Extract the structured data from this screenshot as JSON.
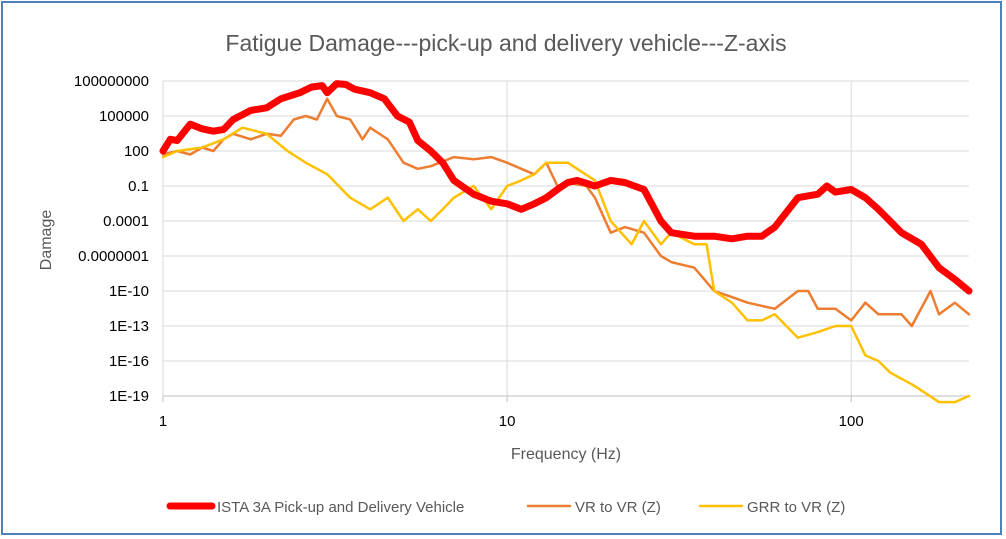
{
  "chart_data": {
    "type": "line",
    "title": "Fatigue Damage---pick-up and delivery vehicle---Z-axis",
    "xlabel": "Frequency (Hz)",
    "ylabel": "Damage",
    "x_scale": "log",
    "y_scale": "log",
    "xlim": [
      1,
      220
    ],
    "ylim": [
      1e-19,
      100000000.0
    ],
    "x_ticks": [
      {
        "value": 1,
        "label": "1"
      },
      {
        "value": 10,
        "label": "10"
      },
      {
        "value": 100,
        "label": "100"
      }
    ],
    "y_ticks": [
      {
        "value": 100000000.0,
        "label": "100000000"
      },
      {
        "value": 100000.0,
        "label": "100000"
      },
      {
        "value": 100,
        "label": "100"
      },
      {
        "value": 0.1,
        "label": "0.1"
      },
      {
        "value": 0.0001,
        "label": "0.0001"
      },
      {
        "value": 1e-07,
        "label": "0.0000001"
      },
      {
        "value": 1e-10,
        "label": "1E-10"
      },
      {
        "value": 1e-13,
        "label": "1E-13"
      },
      {
        "value": 1e-16,
        "label": "1E-16"
      },
      {
        "value": 1e-19,
        "label": "1E-19"
      }
    ],
    "grid": true,
    "legend_position": "bottom",
    "series": [
      {
        "name": "ISTA 3A Pick-up and Delivery Vehicle",
        "color": "#ff0000",
        "x": [
          1,
          1.05,
          1.1,
          1.2,
          1.3,
          1.4,
          1.5,
          1.6,
          1.8,
          2.0,
          2.2,
          2.5,
          2.7,
          2.9,
          3.0,
          3.2,
          3.4,
          3.6,
          4.0,
          4.4,
          4.8,
          5.2,
          5.5,
          6.0,
          6.5,
          7.0,
          8.0,
          9.0,
          10,
          11,
          12,
          13,
          14,
          15,
          16,
          18,
          20,
          22,
          25,
          28,
          30,
          35,
          40,
          45,
          50,
          55,
          60,
          70,
          80,
          85,
          90,
          100,
          110,
          120,
          140,
          160,
          180,
          200,
          220
        ],
        "values": [
          100,
          1000,
          800,
          20000,
          8000,
          5000,
          7000,
          50000,
          300000,
          500000,
          3000000,
          10000000,
          30000000,
          40000000,
          10000000,
          60000000,
          50000000,
          20000000,
          10000000,
          3000000,
          100000,
          30000,
          800,
          100,
          10,
          0.3,
          0.02,
          0.005,
          0.003,
          0.001,
          0.003,
          0.01,
          0.05,
          0.2,
          0.3,
          0.1,
          0.3,
          0.2,
          0.05,
          0.0001,
          1e-05,
          5e-06,
          5e-06,
          3e-06,
          5e-06,
          5e-06,
          3e-05,
          0.01,
          0.02,
          0.1,
          0.03,
          0.05,
          0.01,
          0.001,
          1e-05,
          1e-06,
          1e-08,
          1e-09,
          1e-10
        ]
      },
      {
        "name": "VR to VR (Z)",
        "color": "#ed7d31",
        "x": [
          1,
          1.1,
          1.2,
          1.3,
          1.4,
          1.5,
          1.6,
          1.8,
          2.0,
          2.2,
          2.4,
          2.6,
          2.8,
          3.0,
          3.2,
          3.5,
          3.8,
          4.0,
          4.5,
          5.0,
          5.5,
          6.0,
          7.0,
          8.0,
          9.0,
          10,
          11,
          12,
          13,
          14,
          15,
          17,
          18,
          20,
          22,
          25,
          28,
          30,
          35,
          40,
          45,
          50,
          60,
          70,
          75,
          80,
          90,
          100,
          110,
          120,
          130,
          140,
          150,
          170,
          180,
          200,
          220
        ],
        "values": [
          50,
          100,
          50,
          200,
          100,
          1000,
          3000,
          1000,
          3000,
          2000,
          50000,
          100000,
          50000,
          3000000,
          100000,
          50000,
          1000,
          10000,
          1000,
          10,
          3,
          5,
          30,
          20,
          30,
          10,
          3,
          1,
          10,
          0.1,
          0.2,
          0.1,
          0.01,
          1e-05,
          3e-05,
          1e-05,
          1e-07,
          3e-08,
          1e-08,
          1e-10,
          3e-11,
          1e-11,
          3e-12,
          1e-10,
          1e-10,
          3e-12,
          3e-12,
          3e-13,
          1e-11,
          1e-12,
          1e-12,
          1e-12,
          1e-13,
          1e-10,
          1e-12,
          1e-11,
          1e-12
        ]
      },
      {
        "name": "GRR to VR (Z)",
        "color": "#ffc000",
        "x": [
          1,
          1.1,
          1.3,
          1.5,
          1.7,
          2.0,
          2.3,
          2.6,
          3.0,
          3.5,
          4.0,
          4.5,
          5.0,
          5.5,
          6.0,
          6.5,
          7.0,
          8.0,
          9.0,
          10,
          11,
          12,
          13,
          15,
          18,
          20,
          23,
          25,
          28,
          30,
          35,
          38,
          40,
          45,
          50,
          55,
          60,
          70,
          80,
          90,
          100,
          110,
          120,
          130,
          140,
          150,
          160,
          180,
          200,
          220
        ],
        "values": [
          30,
          100,
          200,
          1000,
          10000,
          3000,
          100,
          10,
          1,
          0.01,
          0.001,
          0.01,
          0.0001,
          0.001,
          0.0001,
          0.001,
          0.01,
          0.1,
          0.001,
          0.1,
          0.3,
          1,
          10,
          10,
          0.3,
          0.0001,
          1e-06,
          0.0001,
          1e-06,
          1e-05,
          1e-06,
          1e-06,
          1e-10,
          1e-11,
          3e-13,
          3e-13,
          1e-12,
          1e-14,
          3e-14,
          1e-13,
          1e-13,
          3e-16,
          1e-16,
          1e-17,
          3e-18,
          1e-18,
          3e-19,
          3e-20,
          3e-20,
          1e-19
        ]
      }
    ]
  }
}
